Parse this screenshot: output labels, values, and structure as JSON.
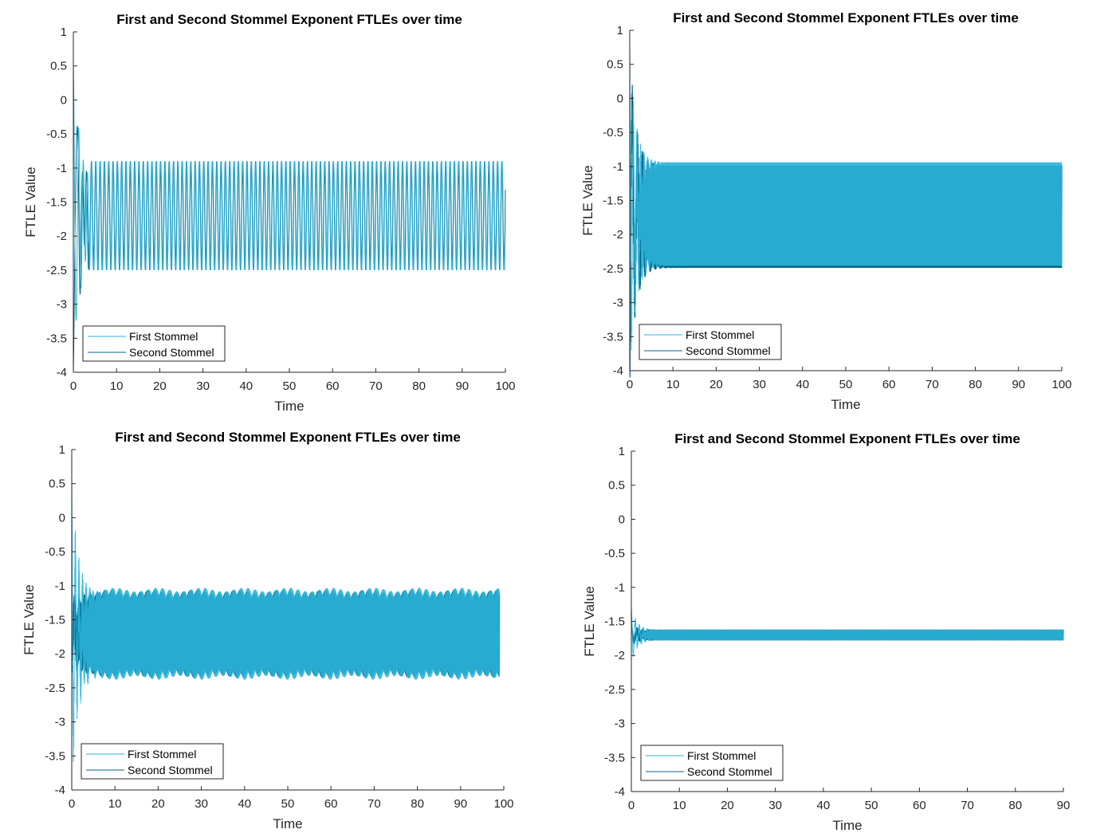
{
  "chart_data": [
    {
      "type": "line",
      "title": "First and Second Stommel Exponent FTLEs over time",
      "xlabel": "Time",
      "ylabel": "FTLE Value",
      "xlim": [
        0,
        100
      ],
      "ylim": [
        -4,
        1
      ],
      "xticks": [
        0,
        10,
        20,
        30,
        40,
        50,
        60,
        70,
        80,
        90,
        100
      ],
      "yticks": [
        1,
        0.5,
        0,
        -0.5,
        -1,
        -1.5,
        -2,
        -2.5,
        -3,
        -3.5,
        -4
      ],
      "x_end": 100,
      "grid": false,
      "legend_position": "bottom-left",
      "series": [
        {
          "name": "First Stommel",
          "color": "#2bb3d9",
          "start_value": 0.5,
          "oscillation_range": [
            -2.5,
            -0.9
          ],
          "oscillation_period": 1
        },
        {
          "name": "Second Stommel",
          "color": "#006685",
          "start_value": -4,
          "oscillation_range": [
            -2.5,
            -0.9
          ],
          "oscillation_period": 1
        }
      ]
    },
    {
      "type": "line",
      "title": "First and Second Stommel Exponent FTLEs over time",
      "xlabel": "Time",
      "ylabel": "FTLE Value",
      "xlim": [
        0,
        100
      ],
      "ylim": [
        -4,
        1
      ],
      "xticks": [
        0,
        10,
        20,
        30,
        40,
        50,
        60,
        70,
        80,
        90,
        100
      ],
      "yticks": [
        1,
        0.5,
        0,
        -0.5,
        -1,
        -1.5,
        -2,
        -2.5,
        -3,
        -3.5,
        -4
      ],
      "x_end": 100,
      "grid": false,
      "legend_position": "bottom-left",
      "series": [
        {
          "name": "First Stommel",
          "color": "#2bb3d9",
          "start_value": 0.5,
          "oscillation_range": [
            -2.5,
            -0.9
          ]
        },
        {
          "name": "Second Stommel",
          "color": "#006685",
          "start_value": -4,
          "oscillation_range": [
            -2.5,
            -0.9
          ]
        }
      ]
    },
    {
      "type": "line",
      "title": "First and Second Stommel Exponent FTLEs over time",
      "xlabel": "Time",
      "ylabel": "FTLE Value",
      "xlim": [
        0,
        100
      ],
      "ylim": [
        -4,
        1
      ],
      "xticks": [
        0,
        10,
        20,
        30,
        40,
        50,
        60,
        70,
        80,
        90,
        100
      ],
      "yticks": [
        1,
        0.5,
        0,
        -0.5,
        -1,
        -1.5,
        -2,
        -2.5,
        -3,
        -3.5,
        -4
      ],
      "x_end": 99,
      "grid": false,
      "legend_position": "bottom-left",
      "series": [
        {
          "name": "First Stommel",
          "color": "#2bb3d9",
          "start_value": 0.4,
          "oscillation_range": [
            -2.38,
            -1.03
          ]
        },
        {
          "name": "Second Stommel",
          "color": "#006685",
          "start_value": -2.1,
          "oscillation_range": [
            -2.36,
            -1.05
          ]
        }
      ]
    },
    {
      "type": "line",
      "title": "First and Second Stommel Exponent FTLEs over time",
      "xlabel": "Time",
      "ylabel": "FTLE Value",
      "xlim": [
        0,
        90
      ],
      "ylim": [
        -4,
        1
      ],
      "xticks": [
        0,
        10,
        20,
        30,
        40,
        50,
        60,
        70,
        80,
        90
      ],
      "yticks": [
        1,
        0.5,
        0,
        -0.5,
        -1,
        -1.5,
        -2,
        -2.5,
        -3,
        -3.5,
        -4
      ],
      "x_end": 90,
      "grid": false,
      "legend_position": "bottom-left",
      "series": [
        {
          "name": "First Stommel",
          "color": "#2bb3d9",
          "start_value": -1.3,
          "oscillation_range": [
            -1.78,
            -1.62
          ]
        },
        {
          "name": "Second Stommel",
          "color": "#006685",
          "start_value": -1.55,
          "oscillation_range": [
            -1.78,
            -1.62
          ]
        }
      ]
    }
  ]
}
